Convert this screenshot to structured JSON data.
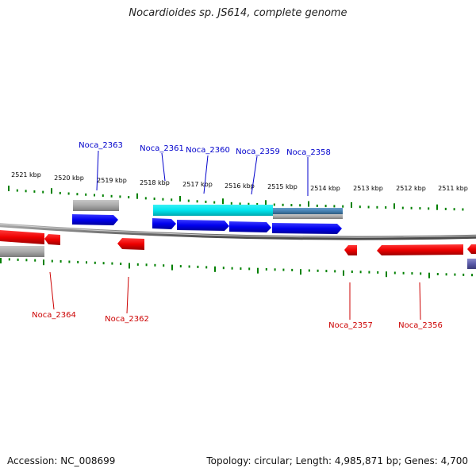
{
  "header": {
    "title": "Nocardioides sp. JS614, complete genome"
  },
  "footer": {
    "accession": "Accession: NC_008699",
    "summary": "Topology: circular; Length: 4,985,871 bp; Genes: 4,700"
  },
  "colors": {
    "forward_gene": "#0000ee",
    "reverse_gene": "#ee0000",
    "highlight_gene": "#00e5ee",
    "steelblue_gene": "#4682b4",
    "grey_gene": "#a9a9a9",
    "backbone": "#808080",
    "tick": "#008000",
    "scale_label": "#000000",
    "forward_label": "#0000cc",
    "reverse_label": "#cc0000"
  },
  "scale_ticks": [
    {
      "label": "2521 kbp"
    },
    {
      "label": "2520 kbp"
    },
    {
      "label": "2519 kbp"
    },
    {
      "label": "2518 kbp"
    },
    {
      "label": "2517 kbp"
    },
    {
      "label": "2516 kbp"
    },
    {
      "label": "2515 kbp"
    },
    {
      "label": "2514 kbp"
    },
    {
      "label": "2513 kbp"
    },
    {
      "label": "2512 kbp"
    },
    {
      "label": "2511 kbp"
    }
  ],
  "gene_labels": [
    {
      "name": "Noca_2363",
      "strand": "forward"
    },
    {
      "name": "Noca_2361",
      "strand": "forward"
    },
    {
      "name": "Noca_2360",
      "strand": "forward"
    },
    {
      "name": "Noca_2359",
      "strand": "forward"
    },
    {
      "name": "Noca_2358",
      "strand": "forward"
    },
    {
      "name": "Noca_2364",
      "strand": "reverse"
    },
    {
      "name": "Noca_2362",
      "strand": "reverse"
    },
    {
      "name": "Noca_2357",
      "strand": "reverse"
    },
    {
      "name": "Noca_2356",
      "strand": "reverse"
    }
  ]
}
